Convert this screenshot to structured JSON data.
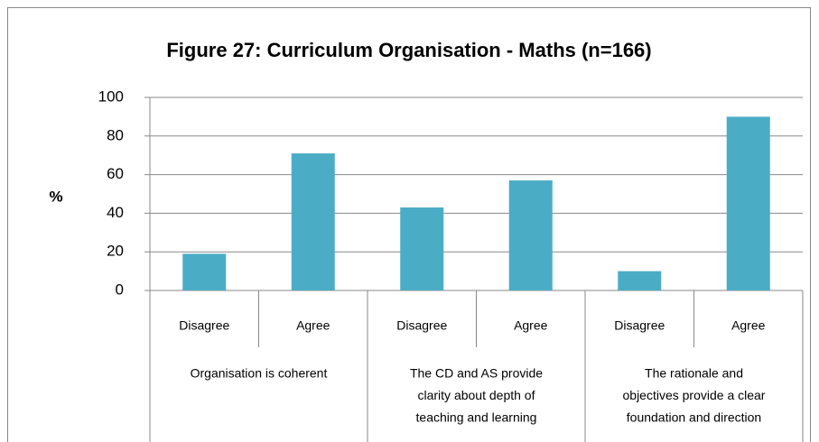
{
  "chart_data": {
    "type": "bar",
    "title": "Figure 27: Curriculum Organisation - Maths (n=166)",
    "y_label": "%",
    "categories": [
      "Disagree",
      "Agree",
      "Disagree",
      "Agree",
      "Disagree",
      "Agree"
    ],
    "groups": [
      [
        "Organisation is coherent"
      ],
      [
        "The CD and AS provide",
        "clarity about depth of",
        "teaching and learning"
      ],
      [
        "The rationale and",
        "objectives provide  a clear",
        "foundation and direction"
      ]
    ],
    "values": [
      19,
      71,
      43,
      57,
      10,
      90
    ],
    "color": "#4bacc6",
    "ylim": [
      0,
      100
    ],
    "yticks": [
      0,
      20,
      40,
      60,
      80,
      100
    ],
    "grid": true
  }
}
